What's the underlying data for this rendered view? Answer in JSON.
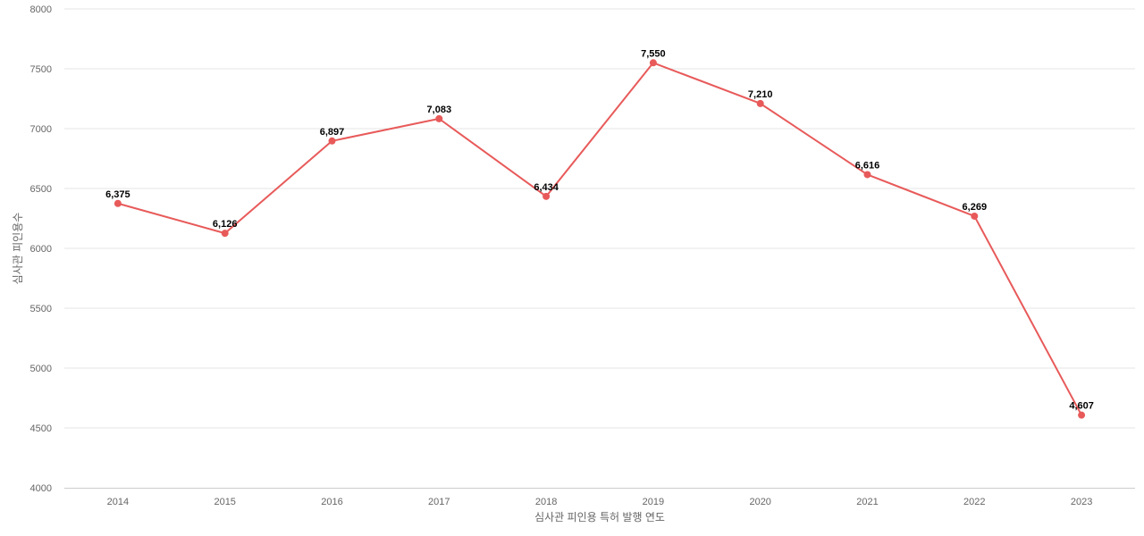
{
  "chart_data": {
    "type": "line",
    "title": "",
    "xlabel": "심사관 피인용 특허 발행 연도",
    "ylabel": "심사관 피인용수",
    "ylim": [
      4000,
      8000
    ],
    "yticks": [
      4000,
      4500,
      5000,
      5500,
      6000,
      6500,
      7000,
      7500,
      8000
    ],
    "categories": [
      "2014",
      "2015",
      "2016",
      "2017",
      "2018",
      "2019",
      "2020",
      "2021",
      "2022",
      "2023"
    ],
    "series": [
      {
        "values": [
          6375,
          6126,
          6897,
          7083,
          6434,
          7550,
          7210,
          6616,
          6269,
          4607
        ],
        "labels": [
          "6,375",
          "6,126",
          "6,897",
          "7,083",
          "6,434",
          "7,550",
          "7,210",
          "6,616",
          "6,269",
          "4,607"
        ],
        "color": "#e85a5a"
      }
    ],
    "grid": true,
    "legend": "none"
  }
}
